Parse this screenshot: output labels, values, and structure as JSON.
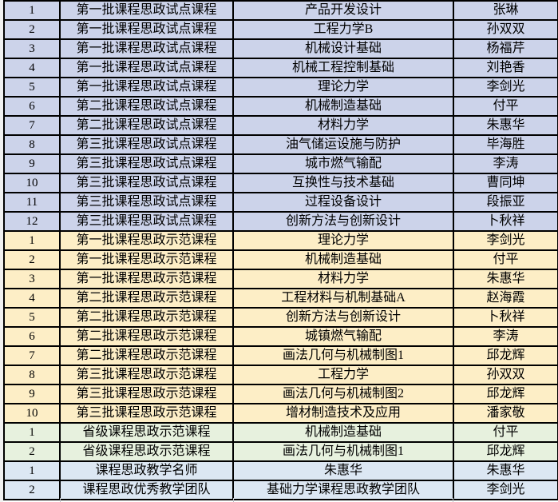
{
  "colors": {
    "pilot_section_bg": "#ccd3ea",
    "demo_section_bg": "#fdeec6",
    "provincial_section_bg": "#e7f1de",
    "master_section_bg": "#dce7f3",
    "gridline": "#000000",
    "selection_indicator": "#3d7e33"
  },
  "table": {
    "column_keys": [
      "num",
      "category",
      "course",
      "teacher"
    ],
    "sections": [
      {
        "name": "pilot-courses",
        "bg": "#ccd3ea",
        "rows": [
          {
            "num": "1",
            "category": "第一批课程思政试点课程",
            "course": "产品开发设计",
            "teacher": "张琳"
          },
          {
            "num": "2",
            "category": "第一批课程思政试点课程",
            "course": "工程力学B",
            "teacher": "孙双双"
          },
          {
            "num": "3",
            "category": "第一批课程思政试点课程",
            "course": "机械设计基础",
            "teacher": "杨福芹"
          },
          {
            "num": "4",
            "category": "第一批课程思政试点课程",
            "course": "机械工程控制基础",
            "teacher": "刘艳香"
          },
          {
            "num": "5",
            "category": "第一批课程思政试点课程",
            "course": "理论力学",
            "teacher": "李剑光"
          },
          {
            "num": "6",
            "category": "第二批课程思政试点课程",
            "course": "机械制造基础",
            "teacher": "付平"
          },
          {
            "num": "7",
            "category": "第二批课程思政试点课程",
            "course": "材料力学",
            "teacher": "朱惠华"
          },
          {
            "num": "8",
            "category": "第三批课程思政试点课程",
            "course": "油气储运设施与防护",
            "teacher": "毕海胜"
          },
          {
            "num": "9",
            "category": "第三批课程思政试点课程",
            "course": "城市燃气输配",
            "teacher": "李涛"
          },
          {
            "num": "10",
            "category": "第三批课程思政试点课程",
            "course": "互换性与技术基础",
            "teacher": "曹同坤"
          },
          {
            "num": "11",
            "category": "第三批课程思政试点课程",
            "course": "过程设备设计",
            "teacher": "段振亚"
          },
          {
            "num": "12",
            "category": "第三批课程思政试点课程",
            "course": "创新方法与创新设计",
            "teacher": "卜秋祥"
          }
        ]
      },
      {
        "name": "demonstration-courses",
        "bg": "#fdeec6",
        "rows": [
          {
            "num": "1",
            "category": "第一批课程思政示范课程",
            "course": "理论力学",
            "teacher": "李剑光"
          },
          {
            "num": "2",
            "category": "第一批课程思政示范课程",
            "course": "机械制造基础",
            "teacher": "付平"
          },
          {
            "num": "3",
            "category": "第一批课程思政示范课程",
            "course": "材料力学",
            "teacher": "朱惠华"
          },
          {
            "num": "4",
            "category": "第二批课程思政示范课程",
            "course": "工程材料与机制基础A",
            "teacher": "赵海霞"
          },
          {
            "num": "5",
            "category": "第二批课程思政示范课程",
            "course": "创新方法与创新设计",
            "teacher": "卜秋祥"
          },
          {
            "num": "6",
            "category": "第二批课程思政示范课程",
            "course": "城镇燃气输配",
            "teacher": "李涛"
          },
          {
            "num": "7",
            "category": "第二批课程思政示范课程",
            "course": "画法几何与机械制图1",
            "teacher": "邱龙辉"
          },
          {
            "num": "8",
            "category": "第三批课程思政示范课程",
            "course": "工程力学",
            "teacher": "孙双双"
          },
          {
            "num": "9",
            "category": "第三批课程思政示范课程",
            "course": "画法几何与机械制图2",
            "teacher": "邱龙辉"
          },
          {
            "num": "10",
            "category": "第三批课程思政示范课程",
            "course": "增材制造技术及应用",
            "teacher": "潘家敬"
          }
        ]
      },
      {
        "name": "provincial-demonstration-courses",
        "bg": "#e7f1de",
        "rows": [
          {
            "num": "1",
            "category": "省级课程思政示范课程",
            "course": "机械制造基础",
            "teacher": "付平"
          },
          {
            "num": "2",
            "category": "省级课程思政示范课程",
            "course": "画法几何与机械制图1",
            "teacher": "邱龙辉",
            "indicator": true
          }
        ]
      },
      {
        "name": "teaching-masters-and-teams",
        "bg": "#dce7f3",
        "rows": [
          {
            "num": "1",
            "category": "课程思政教学名师",
            "course": "朱惠华",
            "teacher": "朱惠华"
          },
          {
            "num": "2",
            "category": "课程思政优秀教学团队",
            "course": "基础力学课程思政教学团队",
            "teacher": "李剑光"
          }
        ]
      }
    ]
  }
}
